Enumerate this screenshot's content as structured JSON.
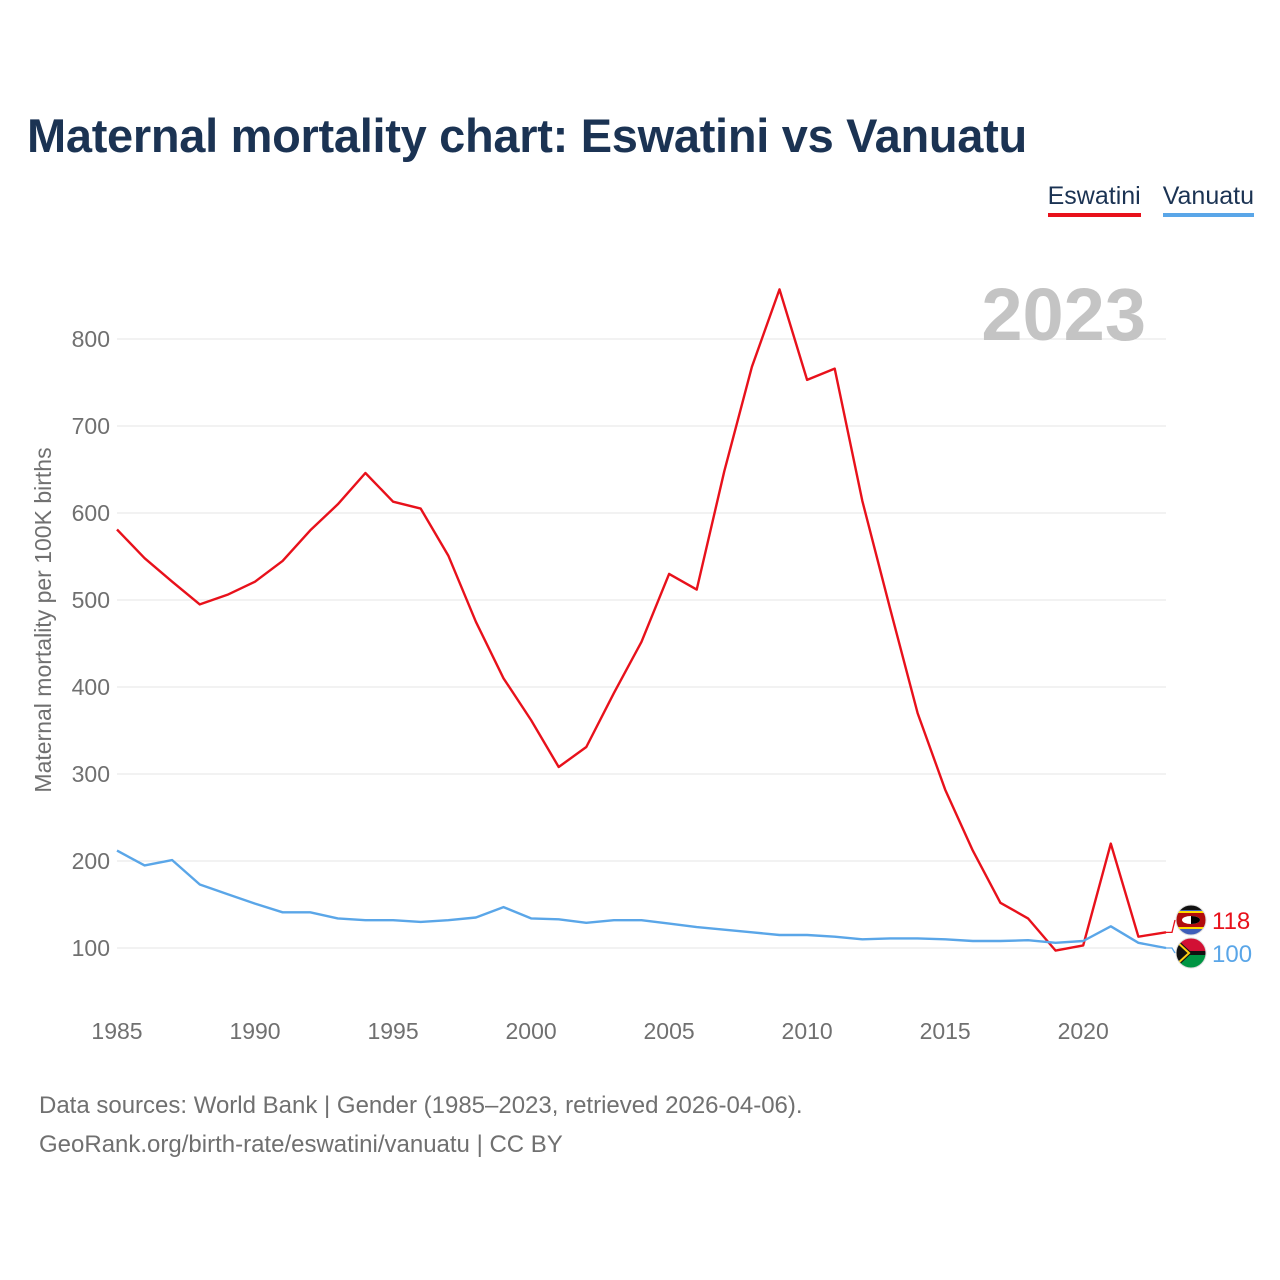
{
  "title": "Maternal mortality chart: Eswatini vs Vanuatu",
  "legend": {
    "eswatini": "Eswatini",
    "vanuatu": "Vanuatu"
  },
  "footer": {
    "line1": "Data sources: World Bank | Gender (1985–2023, retrieved 2026-04-06).",
    "line2": "GeoRank.org/birth-rate/eswatini/vanuatu | CC BY"
  },
  "colors": {
    "eswatini": "#e8111b",
    "vanuatu": "#5aa6e8",
    "title": "#1b3353",
    "year_label": "#c4c4c4"
  },
  "chart_data": {
    "type": "line",
    "title": "Maternal mortality chart: Eswatini vs Vanuatu",
    "ylabel": "Maternal mortality per 100K births",
    "xlabel": "",
    "year_label": "2023",
    "xlim": [
      1985,
      2023
    ],
    "ylim": [
      50,
      890
    ],
    "x_ticks": [
      1985,
      1990,
      1995,
      2000,
      2005,
      2010,
      2015,
      2020
    ],
    "y_ticks": [
      100,
      200,
      300,
      400,
      500,
      600,
      700,
      800
    ],
    "x": [
      1985,
      1986,
      1987,
      1988,
      1989,
      1990,
      1991,
      1992,
      1993,
      1994,
      1995,
      1996,
      1997,
      1998,
      1999,
      2000,
      2001,
      2002,
      2003,
      2004,
      2005,
      2006,
      2007,
      2008,
      2009,
      2010,
      2011,
      2012,
      2013,
      2014,
      2015,
      2016,
      2017,
      2018,
      2019,
      2020,
      2021,
      2022,
      2023
    ],
    "series": [
      {
        "name": "Eswatini",
        "end_label": "118",
        "values": [
          581,
          548,
          521,
          495,
          506,
          521,
          545,
          580,
          610,
          646,
          613,
          605,
          551,
          475,
          410,
          362,
          308,
          331,
          393,
          452,
          530,
          512,
          648,
          768,
          857,
          753,
          766,
          614,
          491,
          370,
          282,
          212,
          152,
          134,
          97,
          103,
          220,
          113,
          118
        ]
      },
      {
        "name": "Vanuatu",
        "end_label": "100",
        "values": [
          212,
          195,
          201,
          173,
          162,
          151,
          141,
          141,
          134,
          132,
          132,
          130,
          132,
          135,
          147,
          134,
          133,
          129,
          132,
          132,
          128,
          124,
          121,
          118,
          115,
          115,
          113,
          110,
          111,
          111,
          110,
          108,
          108,
          109,
          106,
          108,
          125,
          106,
          100
        ]
      }
    ]
  }
}
